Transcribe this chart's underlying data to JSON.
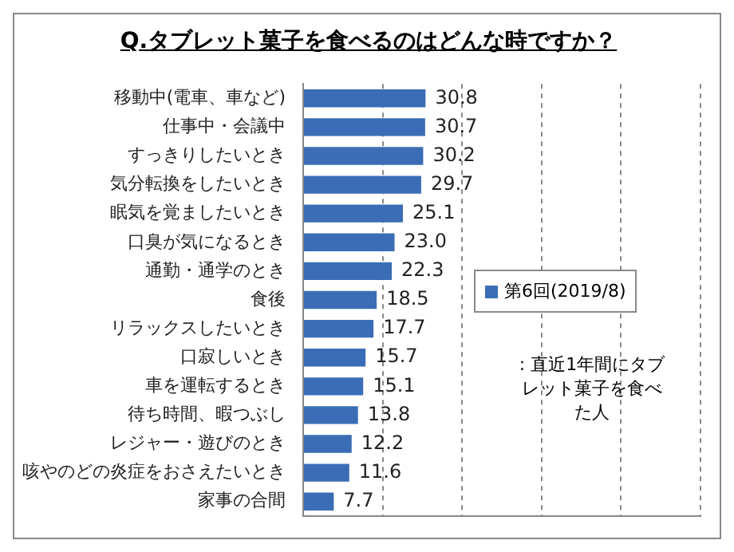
{
  "chart_data": {
    "type": "bar",
    "orientation": "horizontal",
    "title": "Q.タブレット菓子を食べるのはどんな時ですか？",
    "categories": [
      "移動中(電車、車など)",
      "仕事中・会議中",
      "すっきりしたいとき",
      "気分転換をしたいとき",
      "眠気を覚ましたいとき",
      "口臭が気になるとき",
      "通勤・通学のとき",
      "食後",
      "リラックスしたいとき",
      "口寂しいとき",
      "車を運転するとき",
      "待ち時間、暇つぶし",
      "レジャー・遊びのとき",
      "咳やのどの炎症をおさえたいとき",
      "家事の合間"
    ],
    "series": [
      {
        "name": "第6回(2019/8)",
        "color": "#3a6db5",
        "values": [
          30.8,
          30.7,
          30.2,
          29.7,
          25.1,
          23.0,
          22.3,
          18.5,
          17.7,
          15.7,
          15.1,
          13.8,
          12.2,
          11.6,
          7.7
        ],
        "value_labels": [
          "30.8",
          "30.7",
          "30.2",
          "29.7",
          "25.1",
          "23.0",
          "22.3",
          "18.5",
          "17.7",
          "15.7",
          "15.1",
          "13.8",
          "12.2",
          "11.6",
          "7.7"
        ]
      }
    ],
    "xlim": [
      0,
      100
    ],
    "xticks": [
      {
        "value": 0,
        "label": null
      },
      {
        "value": 20,
        "label": null
      },
      {
        "value": 40,
        "label": null
      },
      {
        "value": 60,
        "label": null
      },
      {
        "value": 80,
        "label": null
      },
      {
        "value": 100,
        "label": null
      }
    ],
    "tick_labels": "y",
    "grid": "x",
    "legend": "right",
    "annotations": [
      ": 直近1年間にタブレット菓子を食べた人"
    ]
  }
}
